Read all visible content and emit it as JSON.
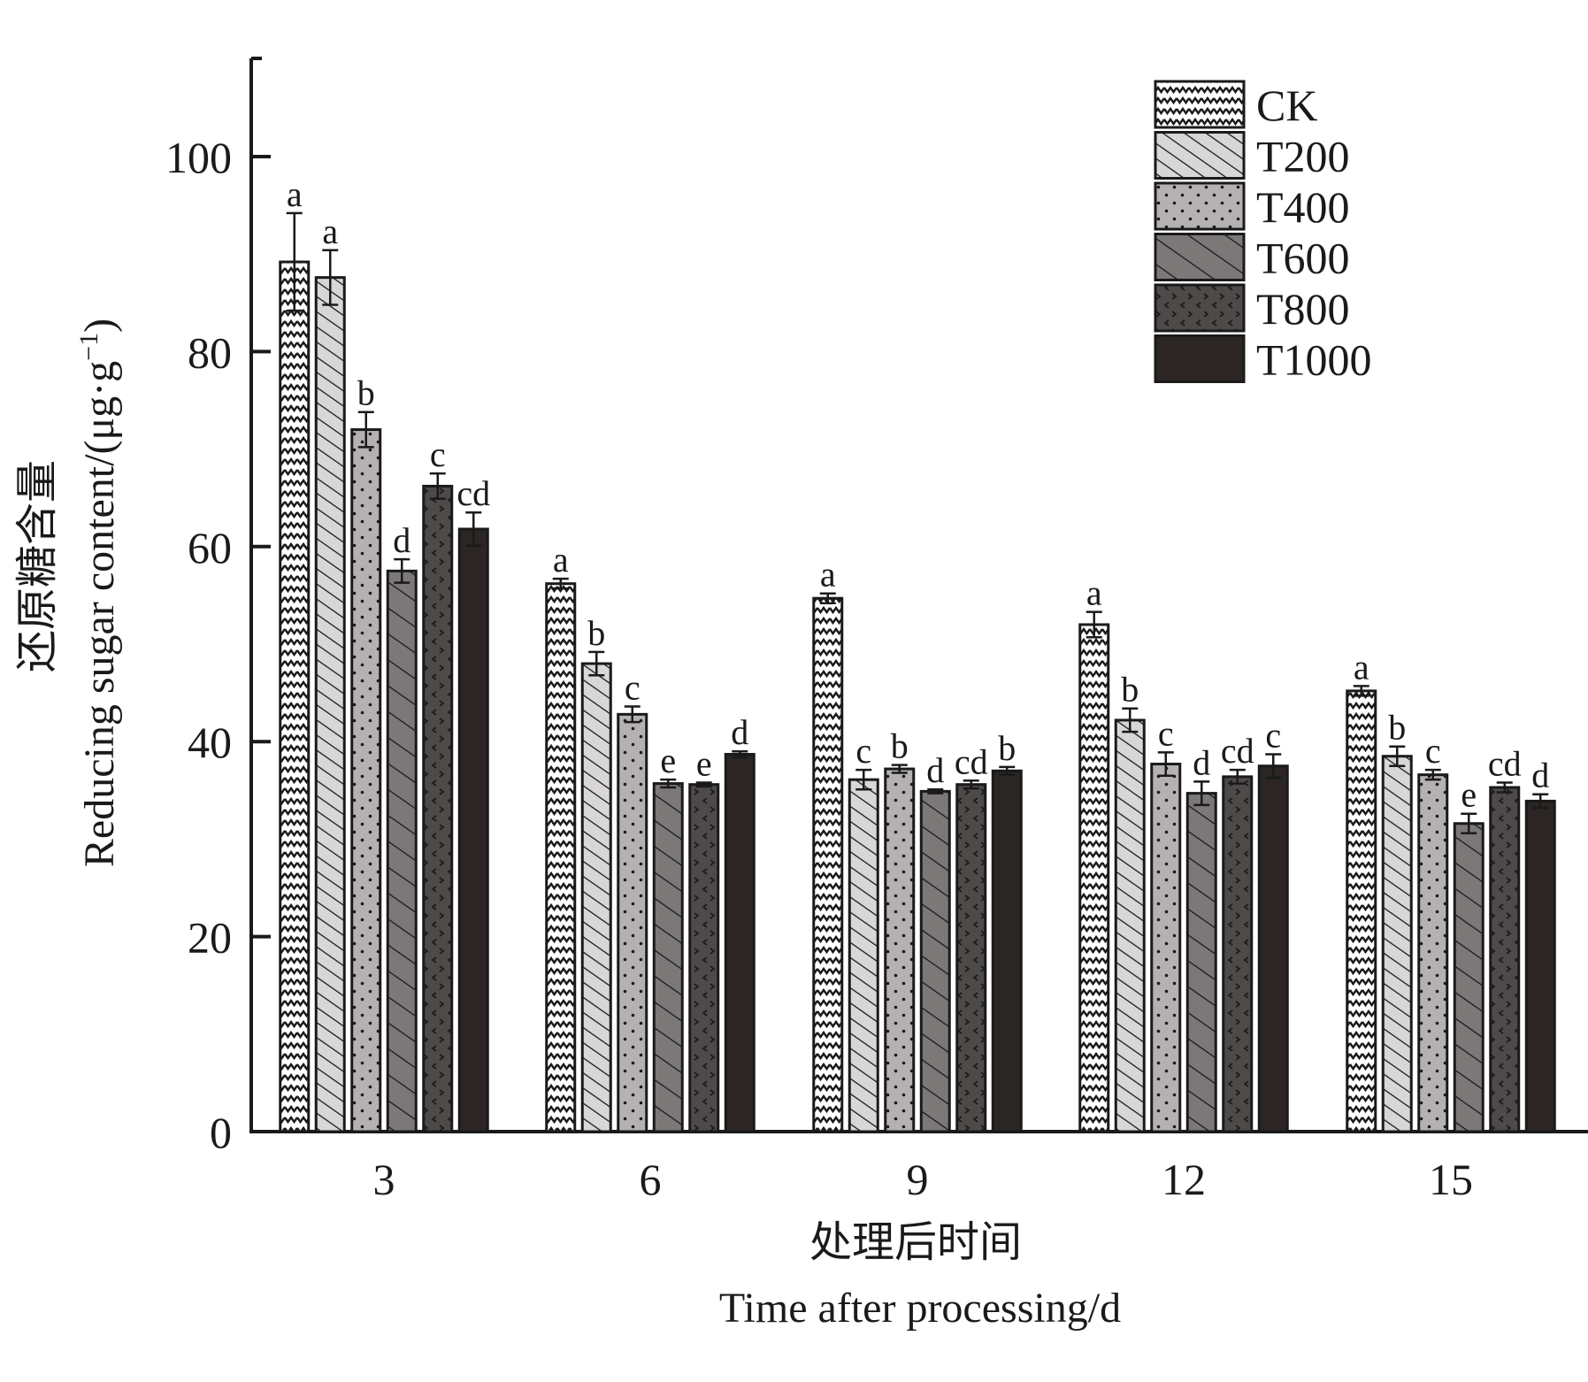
{
  "chart_data": {
    "type": "bar",
    "title": "",
    "ylabel_cn": "还原糖含量",
    "ylabel": "Reducing sugar content/(μg·g",
    "ylabel_sup": "−1",
    "ylabel_close": ")",
    "xlabel_cn": "处理后时间",
    "xlabel": "Time after processing/d",
    "categories": [
      "3",
      "6",
      "9",
      "12",
      "15"
    ],
    "ylim": [
      0,
      110
    ],
    "yticks": [
      0,
      20,
      40,
      60,
      80,
      100
    ],
    "ytick_labels": [
      "0",
      "20",
      "40",
      "60",
      "80",
      "100"
    ],
    "grid": false,
    "legend_position": "top-right",
    "series": [
      {
        "name": "CK",
        "pattern": "zigzag",
        "fill": "#ffffff",
        "values": [
          89.2,
          56.2,
          54.7,
          52.0,
          45.2
        ],
        "errors": [
          5.0,
          0.5,
          0.5,
          1.3,
          0.5
        ],
        "letters": [
          "a",
          "a",
          "a",
          "a",
          "a"
        ]
      },
      {
        "name": "T200",
        "pattern": "diag-fine",
        "fill": "#d9d6d8",
        "values": [
          87.6,
          48.0,
          36.1,
          42.2,
          38.5
        ],
        "errors": [
          2.8,
          1.2,
          1.0,
          1.2,
          1.0
        ],
        "letters": [
          "a",
          "b",
          "c",
          "b",
          "b"
        ]
      },
      {
        "name": "T400",
        "pattern": "dots",
        "fill": "#b5b1b1",
        "values": [
          72.0,
          42.8,
          37.2,
          37.7,
          36.6
        ],
        "errors": [
          1.8,
          0.8,
          0.4,
          1.2,
          0.5
        ],
        "letters": [
          "b",
          "c",
          "b",
          "c",
          "c"
        ]
      },
      {
        "name": "T600",
        "pattern": "diag-wide",
        "fill": "#7d7878",
        "values": [
          57.5,
          35.7,
          34.9,
          34.7,
          31.6
        ],
        "errors": [
          1.2,
          0.4,
          0.2,
          1.2,
          1.0
        ],
        "letters": [
          "d",
          "e",
          "d",
          "d",
          "e"
        ]
      },
      {
        "name": "T800",
        "pattern": "chevrons",
        "fill": "#4e4a49",
        "values": [
          66.2,
          35.6,
          35.6,
          36.4,
          35.3
        ],
        "errors": [
          1.3,
          0.2,
          0.4,
          0.7,
          0.5
        ],
        "letters": [
          "c",
          "e",
          "cd",
          "cd",
          "cd"
        ]
      },
      {
        "name": "T1000",
        "pattern": "solid",
        "fill": "#2b2624",
        "values": [
          61.8,
          38.7,
          37.0,
          37.5,
          33.9
        ],
        "errors": [
          1.7,
          0.3,
          0.4,
          1.2,
          0.7
        ],
        "letters": [
          "cd",
          "d",
          "b",
          "c",
          "d"
        ]
      }
    ]
  }
}
